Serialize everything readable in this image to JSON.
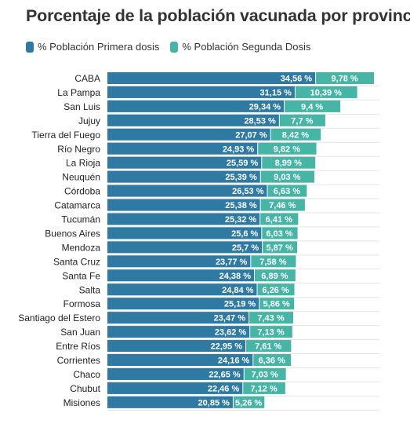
{
  "chart_data": {
    "type": "bar",
    "stacked": true,
    "orientation": "horizontal",
    "title": "Porcentaje de la población vacunada por provincia",
    "categories": [
      "CABA",
      "La Pampa",
      "San Luis",
      "Jujuy",
      "Tierra del Fuego",
      "Río Negro",
      "La Rioja",
      "Neuquén",
      "Córdoba",
      "Catamarca",
      "Tucumán",
      "Buenos Aires",
      "Mendoza",
      "Santa Cruz",
      "Santa Fe",
      "Salta",
      "Formosa",
      "Santiago del Estero",
      "San Juan",
      "Entre Ríos",
      "Corrientes",
      "Chaco",
      "Chubut",
      "Misiones"
    ],
    "series": [
      {
        "name": "% Población Primera dosis",
        "color": "#2f7aa3",
        "values": [
          34.56,
          31.15,
          29.34,
          28.53,
          27.07,
          24.93,
          25.59,
          25.39,
          26.53,
          25.38,
          25.32,
          25.6,
          25.7,
          23.77,
          24.38,
          24.84,
          25.19,
          23.47,
          23.62,
          22.95,
          24.16,
          22.65,
          22.46,
          20.85
        ],
        "labels": [
          "34,56 %",
          "31,15 %",
          "29,34 %",
          "28,53 %",
          "27,07 %",
          "24,93 %",
          "25,59 %",
          "25,39 %",
          "26,53 %",
          "25,38 %",
          "25,32 %",
          "25,6 %",
          "25,7 %",
          "23,77 %",
          "24,38 %",
          "24,84 %",
          "25,19 %",
          "23,47 %",
          "23,62 %",
          "22,95 %",
          "24,16 %",
          "22,65 %",
          "22,46 %",
          "20,85 %"
        ]
      },
      {
        "name": "% Población Segunda Dosis",
        "color": "#47b5a5",
        "values": [
          9.78,
          10.39,
          9.4,
          7.7,
          8.42,
          9.82,
          8.99,
          9.03,
          6.63,
          7.46,
          6.41,
          6.03,
          5.87,
          7.58,
          6.89,
          6.26,
          5.86,
          7.43,
          7.13,
          7.61,
          6.36,
          7.03,
          7.12,
          5.26
        ],
        "labels": [
          "9,78 %",
          "10,39 %",
          "9,4 %",
          "7,7 %",
          "8,42 %",
          "9,82 %",
          "8,99 %",
          "9,03 %",
          "6,63 %",
          "7,46 %",
          "6,41 %",
          "6,03 %",
          "5,87 %",
          "7,58 %",
          "6,89 %",
          "6,26 %",
          "5,86 %",
          "7,43 %",
          "7,13 %",
          "7,61 %",
          "6,36 %",
          "7,03 %",
          "7,12 %",
          "5,26 %"
        ]
      }
    ],
    "legend_position": "top-left",
    "grid": false
  }
}
